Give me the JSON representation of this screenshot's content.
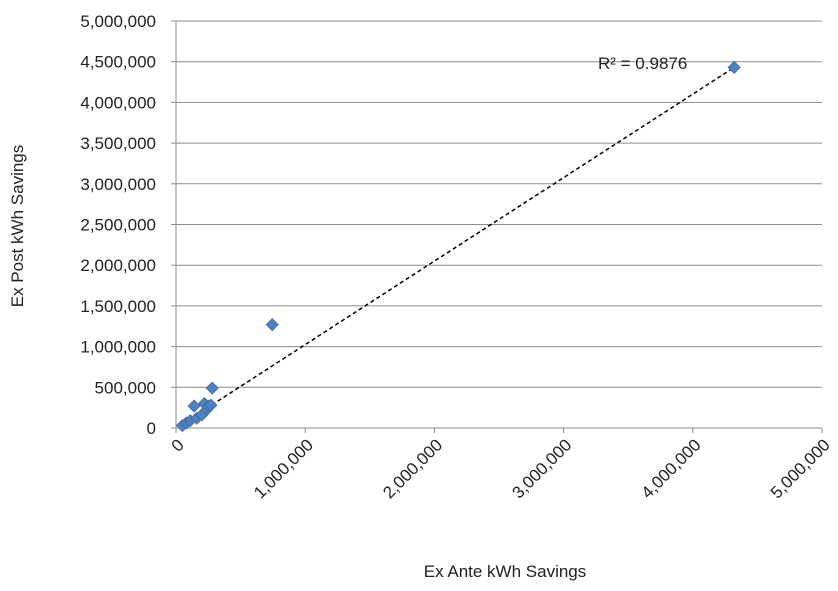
{
  "chart_data": {
    "type": "scatter",
    "title": "",
    "xlabel": "Ex Ante kWh Savings",
    "ylabel": "Ex Post kWh Savings",
    "xlim": [
      0,
      5000000
    ],
    "ylim": [
      0,
      5000000
    ],
    "x_ticks": [
      0,
      1000000,
      2000000,
      3000000,
      4000000,
      5000000
    ],
    "y_ticks": [
      0,
      500000,
      1000000,
      1500000,
      2000000,
      2500000,
      3000000,
      3500000,
      4000000,
      4500000,
      5000000
    ],
    "x_tick_labels": [
      "0",
      "1,000,000",
      "2,000,000",
      "3,000,000",
      "4,000,000",
      "5,000,000"
    ],
    "y_tick_labels": [
      "0",
      "500,000",
      "1,000,000",
      "1,500,000",
      "2,000,000",
      "2,500,000",
      "3,000,000",
      "3,500,000",
      "4,000,000",
      "4,500,000",
      "5,000,000"
    ],
    "grid": {
      "horizontal": true,
      "vertical": false
    },
    "marker_color": "#4F81BD",
    "marker_shape": "diamond",
    "series": [
      {
        "x": [
          50000,
          80000,
          110000,
          140000,
          160000,
          200000,
          220000,
          240000,
          250000,
          270000,
          280000,
          745000,
          4320000
        ],
        "y": [
          30000,
          60000,
          90000,
          270000,
          120000,
          160000,
          300000,
          230000,
          270000,
          280000,
          490000,
          1270000,
          4430000
        ]
      }
    ],
    "trendline": {
      "type": "linear",
      "style": "dashed",
      "color": "#000000",
      "x": [
        50000,
        4320000
      ],
      "y": [
        50000,
        4430000
      ],
      "label": "R² = 0.9876"
    }
  }
}
